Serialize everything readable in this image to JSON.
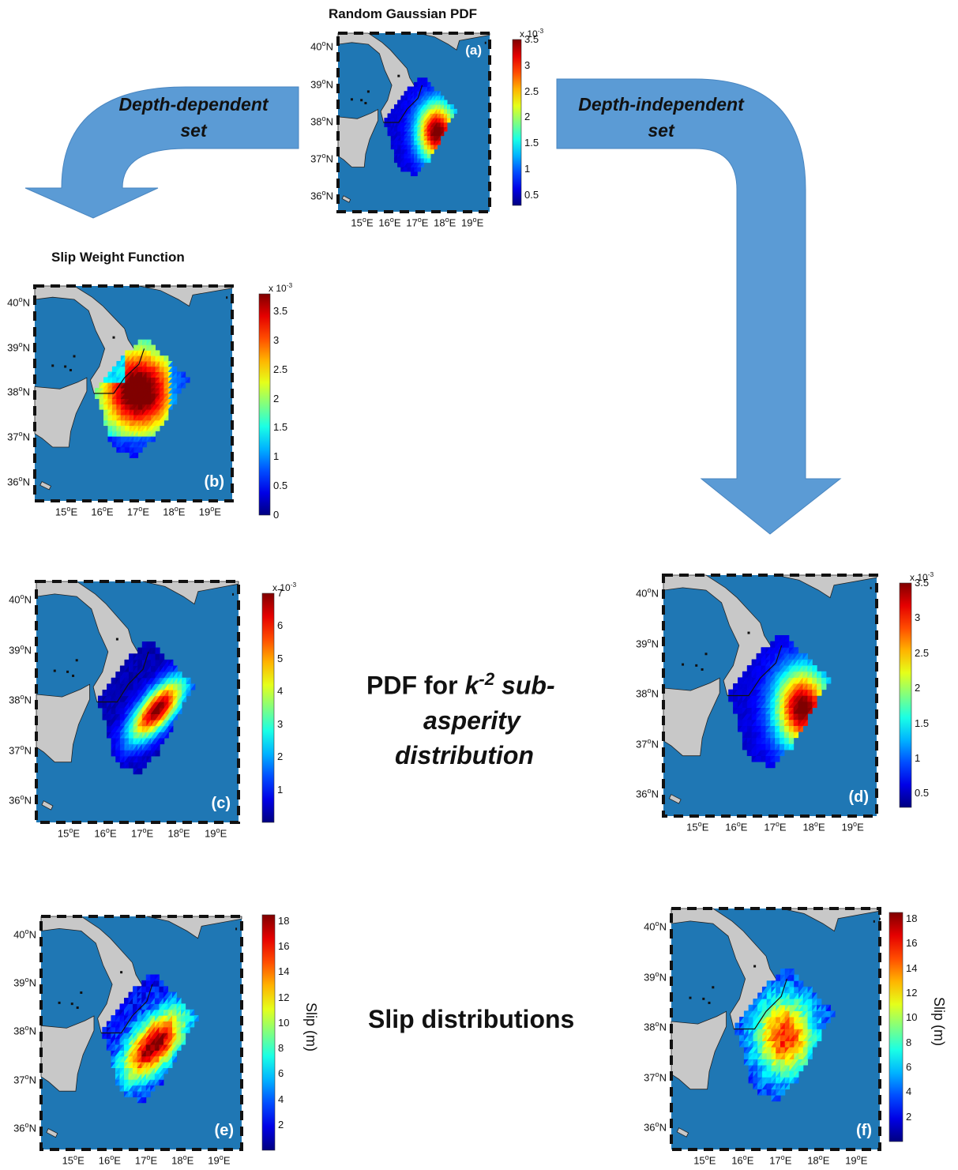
{
  "colors": {
    "arrow": "#5b9bd5",
    "ocean": "#1f77b4",
    "land": "#c8c8c8"
  },
  "titles": {
    "panel_a": "Random Gaussian PDF",
    "panel_b": "Slip Weight Function"
  },
  "arrows": {
    "left_line1": "Depth-dependent",
    "left_line2": "set",
    "right_line1": "Depth-independent",
    "right_line2": "set"
  },
  "center_labels": {
    "pdf_line1_a": "PDF for ",
    "pdf_k": "k",
    "pdf_exp": "-2",
    "pdf_line1_b": " sub-",
    "pdf_line2": "asperity",
    "pdf_line3": "distribution",
    "slip": "Slip distributions"
  },
  "axes": {
    "lat_ticks": [
      "40",
      "39",
      "38",
      "37",
      "36"
    ],
    "lon_ticks": [
      "15",
      "16",
      "17",
      "18",
      "19"
    ],
    "lat_suffix": "N",
    "lon_suffix": "E",
    "degree": "o"
  },
  "panels": [
    {
      "id": "a",
      "label": "(a)",
      "cb_ticks": [
        "3.5",
        "3",
        "2.5",
        "2",
        "1.5",
        "1",
        "0.5"
      ],
      "cb_range": [
        0.3,
        3.5
      ],
      "exponent": "x 10",
      "exponent_power": "-3",
      "pattern": "gauss",
      "peak": [
        17.7,
        37.7
      ]
    },
    {
      "id": "b",
      "label": "(b)",
      "cb_ticks": [
        "3.5",
        "3",
        "2.5",
        "2",
        "1.5",
        "1",
        "0.5",
        "0"
      ],
      "cb_range": [
        0,
        3.8
      ],
      "exponent": "x 10",
      "exponent_power": "-3",
      "pattern": "weight",
      "peak": [
        17.0,
        38.0
      ]
    },
    {
      "id": "c",
      "label": "(c)",
      "cb_ticks": [
        "7",
        "6",
        "5",
        "4",
        "3",
        "2",
        "1"
      ],
      "cb_range": [
        0,
        7
      ],
      "exponent": "x 10",
      "exponent_power": "-3",
      "pattern": "pdfc",
      "peak": [
        17.4,
        37.8
      ]
    },
    {
      "id": "d",
      "label": "(d)",
      "cb_ticks": [
        "3.5",
        "3",
        "2.5",
        "2",
        "1.5",
        "1",
        "0.5"
      ],
      "cb_range": [
        0.3,
        3.5
      ],
      "exponent": "x 10",
      "exponent_power": "-3",
      "pattern": "gauss",
      "peak": [
        17.7,
        37.7
      ]
    },
    {
      "id": "e",
      "label": "(e)",
      "cb_ticks": [
        "18",
        "16",
        "14",
        "12",
        "10",
        "8",
        "6",
        "4",
        "2"
      ],
      "cb_range": [
        0,
        18.5
      ],
      "colorbar_label": "Slip (m)",
      "pattern": "slipe",
      "peak": [
        17.2,
        37.7
      ]
    },
    {
      "id": "f",
      "label": "(f)",
      "cb_ticks": [
        "18",
        "16",
        "14",
        "12",
        "10",
        "8",
        "6",
        "4",
        "2"
      ],
      "cb_range": [
        0,
        18.5
      ],
      "colorbar_label": "Slip (m)",
      "pattern": "slipf",
      "peak": [
        17.1,
        37.8
      ]
    }
  ]
}
